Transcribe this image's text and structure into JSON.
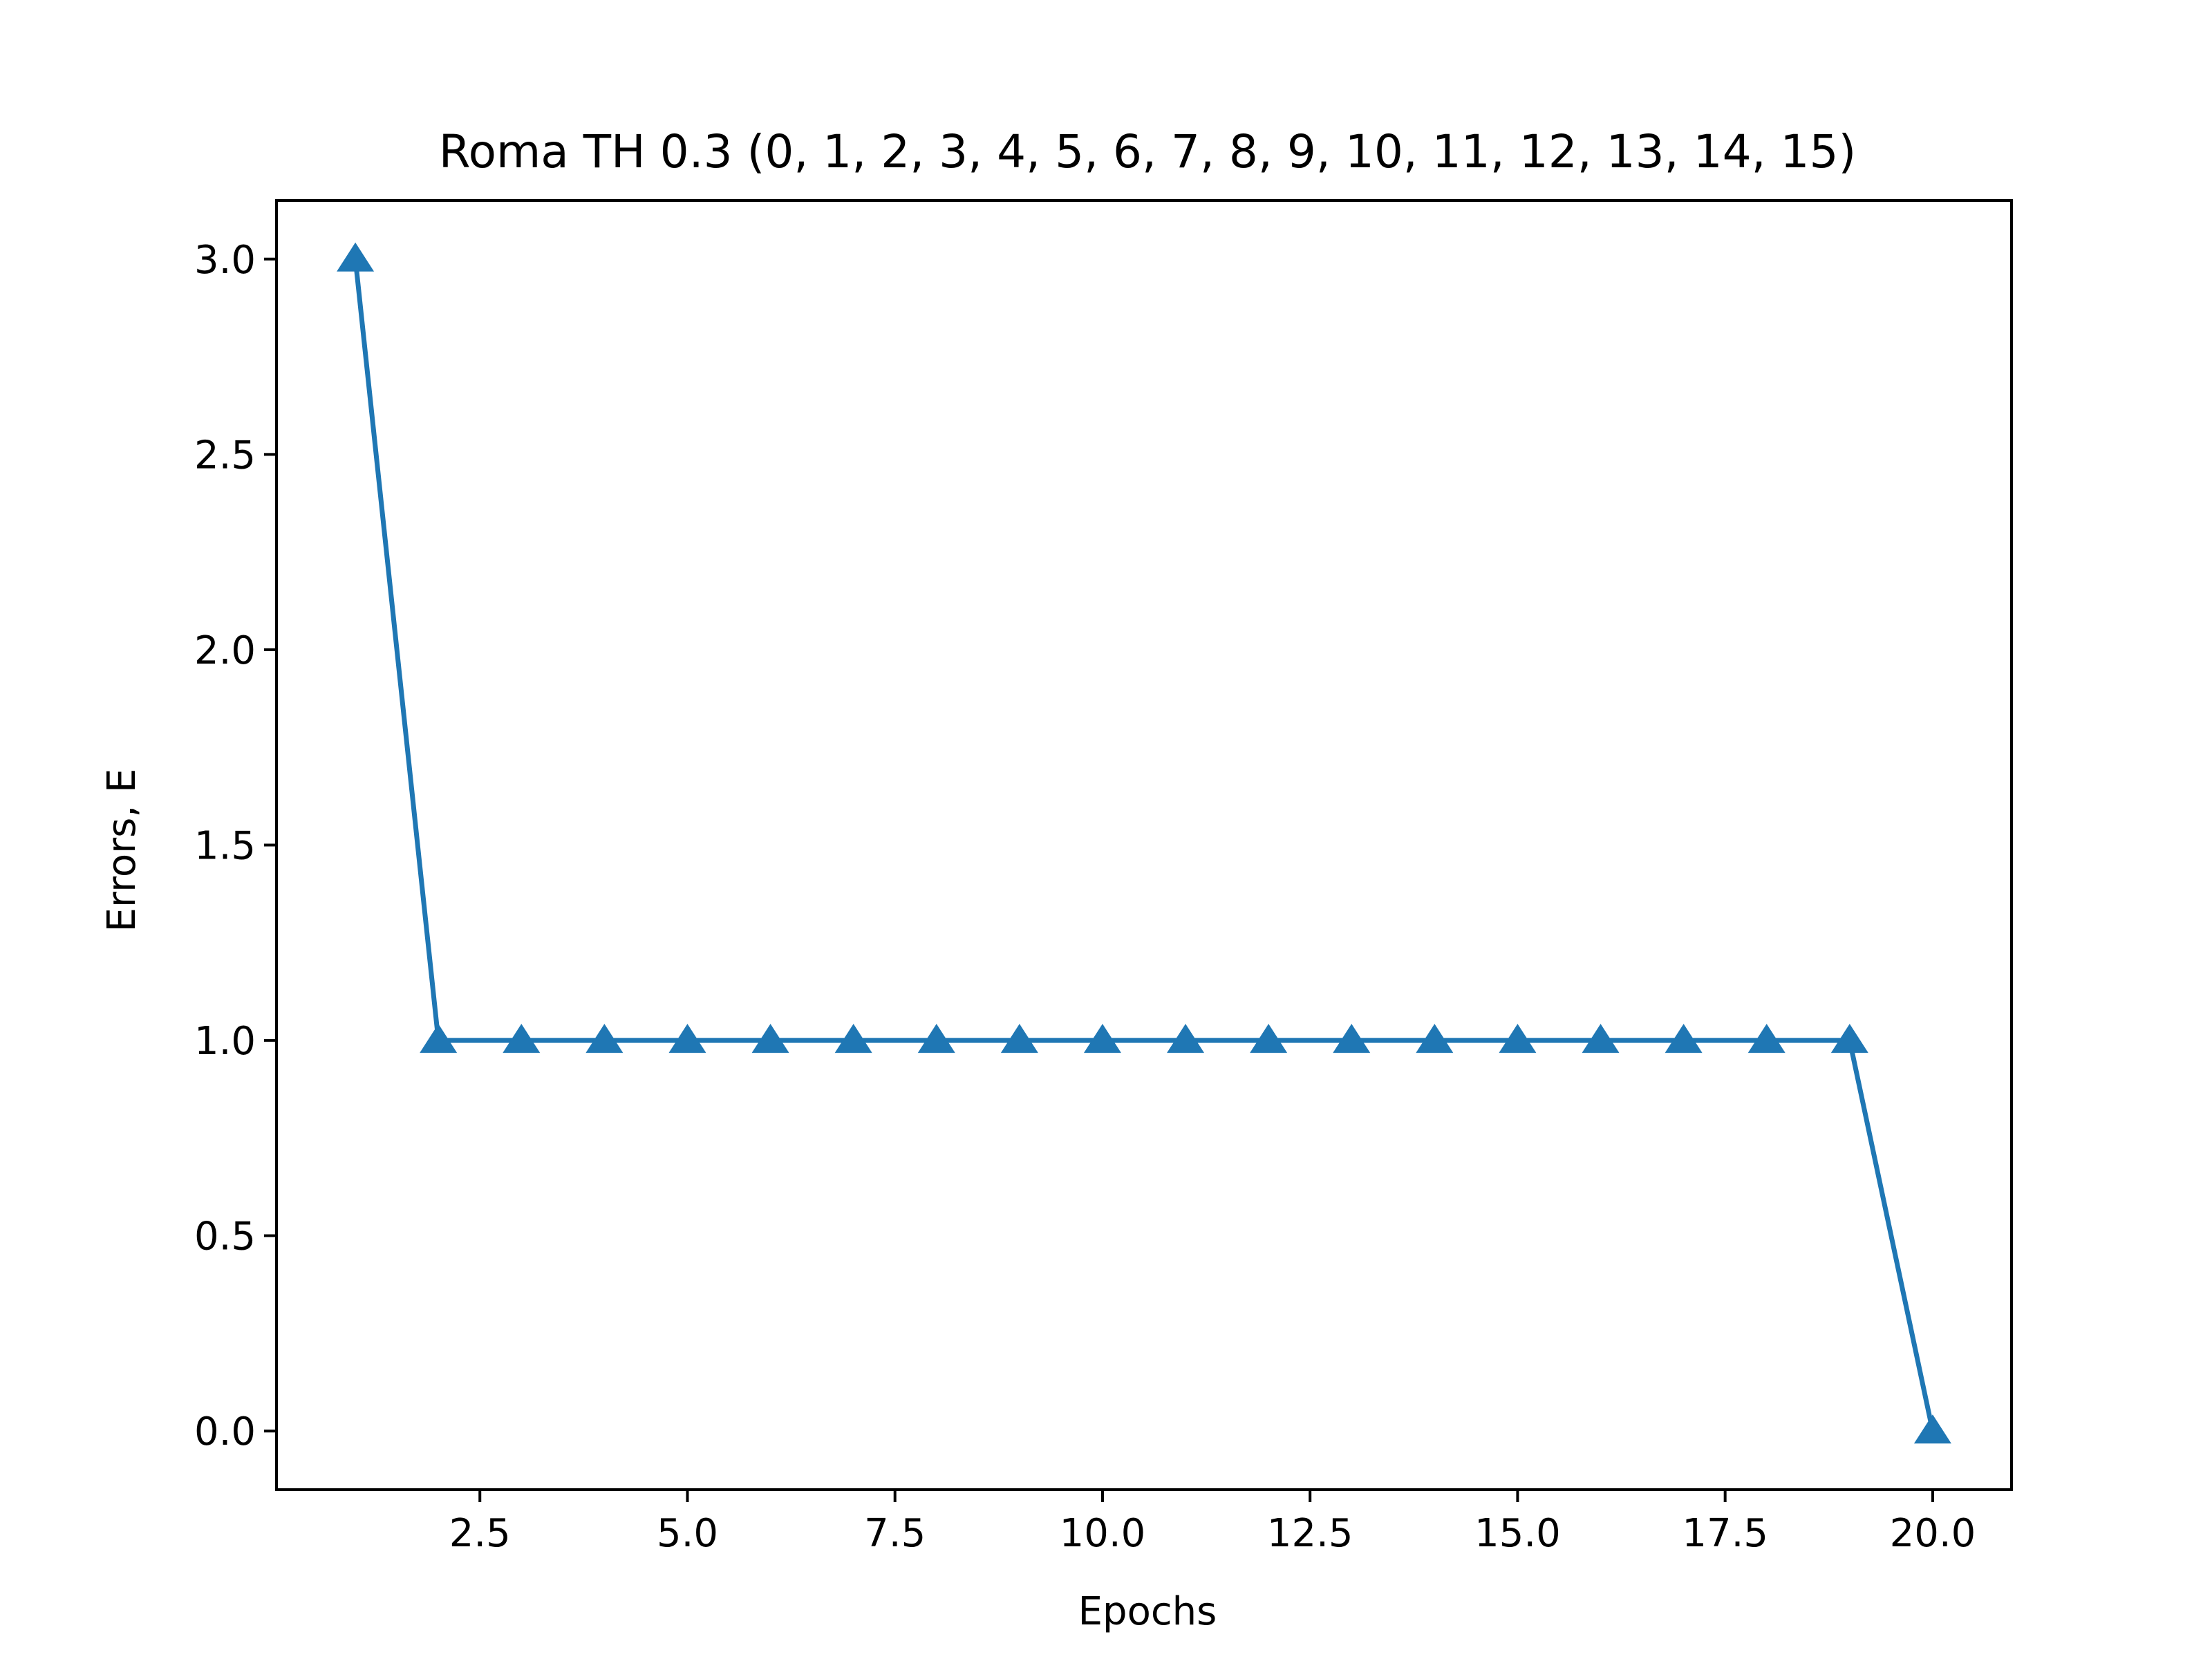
{
  "chart_data": {
    "type": "line",
    "title": "Roma TH 0.3 (0, 1, 2, 3, 4, 5, 6, 7, 8, 9, 10, 11, 12, 13, 14, 15)",
    "xlabel": "Epochs",
    "ylabel": "Errors, E",
    "xlim": [
      0.05,
      20.95
    ],
    "ylim": [
      -0.15,
      3.15
    ],
    "x_ticks": [
      2.5,
      5.0,
      7.5,
      10.0,
      12.5,
      15.0,
      17.5,
      20.0
    ],
    "x_tick_labels": [
      "2.5",
      "5.0",
      "7.5",
      "10.0",
      "12.5",
      "15.0",
      "17.5",
      "20.0"
    ],
    "y_ticks": [
      0.0,
      0.5,
      1.0,
      1.5,
      2.0,
      2.5,
      3.0
    ],
    "y_tick_labels": [
      "0.0",
      "0.5",
      "1.0",
      "1.5",
      "2.0",
      "2.5",
      "3.0"
    ],
    "grid": false,
    "series": [
      {
        "color": "#1f77b4",
        "marker": "triangle-up",
        "x": [
          1,
          2,
          3,
          4,
          5,
          6,
          7,
          8,
          9,
          10,
          11,
          12,
          13,
          14,
          15,
          16,
          17,
          18,
          19,
          20
        ],
        "values": [
          3,
          1,
          1,
          1,
          1,
          1,
          1,
          1,
          1,
          1,
          1,
          1,
          1,
          1,
          1,
          1,
          1,
          1,
          1,
          0
        ]
      }
    ]
  }
}
